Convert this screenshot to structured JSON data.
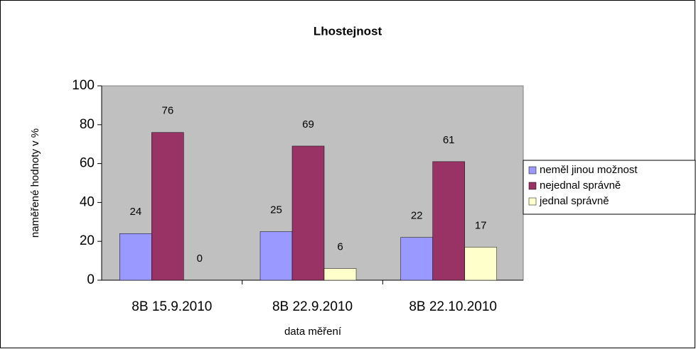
{
  "chart_data": {
    "type": "bar",
    "title": "Lhostejnost",
    "x_label": "data měření",
    "y_label": "naměřené hodnoty v %",
    "categories": [
      "8B 15.9.2010",
      "8B 22.9.2010",
      "8B 22.10.2010"
    ],
    "series": [
      {
        "name": "neměl jinou možnost",
        "color": "#9999ff",
        "values": [
          24,
          25,
          22
        ]
      },
      {
        "name": "nejednal správně",
        "color": "#993366",
        "values": [
          76,
          69,
          61
        ]
      },
      {
        "name": "jednal správně",
        "color": "#ffffcc",
        "values": [
          0,
          6,
          17
        ]
      }
    ],
    "ylim": [
      0,
      100
    ],
    "yticks": [
      0,
      20,
      40,
      60,
      80,
      100
    ],
    "grid": false,
    "legend": "right",
    "plot_background": "#c0c0c0"
  }
}
